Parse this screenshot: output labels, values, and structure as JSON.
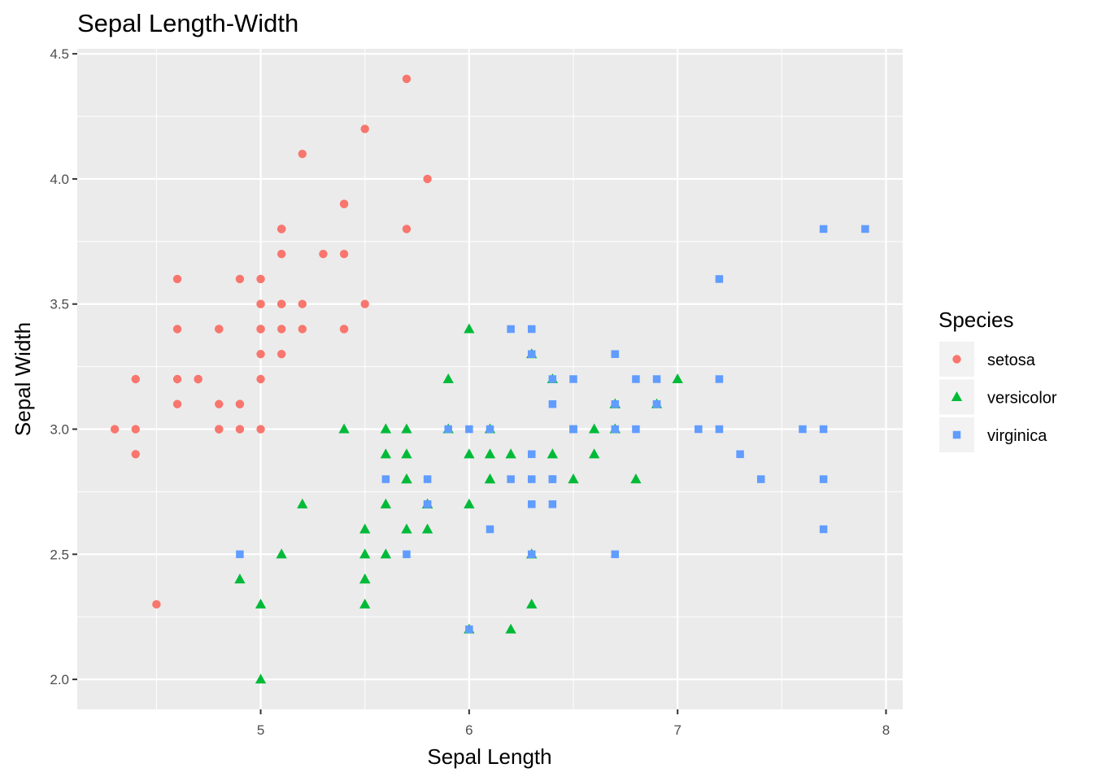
{
  "chart_data": {
    "type": "scatter",
    "title": "Sepal Length-Width",
    "xlabel": "Sepal Length",
    "ylabel": "Sepal Width",
    "xlim": [
      4.12,
      8.08
    ],
    "ylim": [
      1.88,
      4.52
    ],
    "x_ticks": [
      5,
      6,
      7,
      8
    ],
    "y_ticks": [
      2.0,
      2.5,
      3.0,
      3.5,
      4.0,
      4.5
    ],
    "x_tick_labels": [
      "5",
      "6",
      "7",
      "8"
    ],
    "y_tick_labels": [
      "2.0",
      "2.5",
      "3.0",
      "3.5",
      "4.0",
      "4.5"
    ],
    "grid": true,
    "legend": {
      "title": "Species",
      "position": "right"
    },
    "colors": {
      "setosa": "#F8766D",
      "versicolor": "#00BA38",
      "virginica": "#619CFF",
      "panel": "#EBEBEB",
      "grid": "#FFFFFF"
    },
    "series": [
      {
        "name": "setosa",
        "marker": "circle",
        "x": [
          5.1,
          4.9,
          4.7,
          4.6,
          5.0,
          5.4,
          4.6,
          5.0,
          4.4,
          4.9,
          5.4,
          4.8,
          4.8,
          4.3,
          5.8,
          5.7,
          5.4,
          5.1,
          5.7,
          5.1,
          5.4,
          5.1,
          4.6,
          5.1,
          4.8,
          5.0,
          5.0,
          5.2,
          5.2,
          4.7,
          4.8,
          5.4,
          5.2,
          5.5,
          4.9,
          5.0,
          5.5,
          4.9,
          4.4,
          5.1,
          5.0,
          4.5,
          4.4,
          5.0,
          5.1,
          4.8,
          5.1,
          4.6,
          5.3,
          5.0
        ],
        "y": [
          3.5,
          3.0,
          3.2,
          3.1,
          3.6,
          3.9,
          3.4,
          3.4,
          2.9,
          3.1,
          3.7,
          3.4,
          3.0,
          3.0,
          4.0,
          4.4,
          3.9,
          3.5,
          3.8,
          3.8,
          3.4,
          3.7,
          3.6,
          3.3,
          3.4,
          3.0,
          3.4,
          3.5,
          3.4,
          3.2,
          3.1,
          3.4,
          4.1,
          4.2,
          3.1,
          3.2,
          3.5,
          3.6,
          3.0,
          3.4,
          3.5,
          2.3,
          3.2,
          3.5,
          3.8,
          3.0,
          3.8,
          3.2,
          3.7,
          3.3
        ]
      },
      {
        "name": "versicolor",
        "marker": "triangle",
        "x": [
          7.0,
          6.4,
          6.9,
          5.5,
          6.5,
          5.7,
          6.3,
          4.9,
          6.6,
          5.2,
          5.0,
          5.9,
          6.0,
          6.1,
          5.6,
          6.7,
          5.6,
          5.8,
          6.2,
          5.6,
          5.9,
          6.1,
          6.3,
          6.1,
          6.4,
          6.6,
          6.8,
          6.7,
          6.0,
          5.7,
          5.5,
          5.5,
          5.8,
          6.0,
          5.4,
          6.0,
          6.7,
          6.3,
          5.6,
          5.5,
          5.5,
          6.1,
          5.8,
          5.0,
          5.6,
          5.7,
          5.7,
          6.2,
          5.1,
          5.7
        ],
        "y": [
          3.2,
          3.2,
          3.1,
          2.3,
          2.8,
          2.8,
          3.3,
          2.4,
          2.9,
          2.7,
          2.0,
          3.0,
          2.2,
          2.9,
          2.9,
          3.1,
          3.0,
          2.7,
          2.2,
          2.5,
          3.2,
          2.8,
          2.5,
          2.8,
          2.9,
          3.0,
          2.8,
          3.0,
          2.9,
          2.6,
          2.4,
          2.4,
          2.7,
          2.7,
          3.0,
          3.4,
          3.1,
          2.3,
          3.0,
          2.5,
          2.6,
          3.0,
          2.6,
          2.3,
          2.7,
          3.0,
          2.9,
          2.9,
          2.5,
          2.8
        ]
      },
      {
        "name": "virginica",
        "marker": "square",
        "x": [
          6.3,
          5.8,
          7.1,
          6.3,
          6.5,
          7.6,
          4.9,
          7.3,
          6.7,
          7.2,
          6.5,
          6.4,
          6.8,
          5.7,
          5.8,
          6.4,
          6.5,
          7.7,
          7.7,
          6.0,
          6.9,
          5.6,
          7.7,
          6.3,
          6.7,
          7.2,
          6.2,
          6.1,
          6.4,
          7.2,
          7.4,
          7.9,
          6.4,
          6.3,
          6.1,
          7.7,
          6.3,
          6.4,
          6.0,
          6.9,
          6.7,
          6.9,
          5.8,
          6.8,
          6.7,
          6.7,
          6.3,
          6.5,
          6.2,
          5.9
        ],
        "y": [
          3.3,
          2.7,
          3.0,
          2.9,
          3.0,
          3.0,
          2.5,
          2.9,
          2.5,
          3.6,
          3.2,
          2.7,
          3.0,
          2.5,
          2.8,
          3.2,
          3.0,
          3.8,
          2.6,
          2.2,
          3.2,
          2.8,
          2.8,
          2.7,
          3.3,
          3.2,
          2.8,
          3.0,
          2.8,
          3.0,
          2.8,
          3.8,
          2.8,
          2.8,
          2.6,
          3.0,
          3.4,
          3.1,
          3.0,
          3.1,
          3.1,
          3.1,
          2.7,
          3.2,
          3.3,
          3.0,
          2.5,
          3.0,
          3.4,
          3.0
        ]
      }
    ]
  }
}
